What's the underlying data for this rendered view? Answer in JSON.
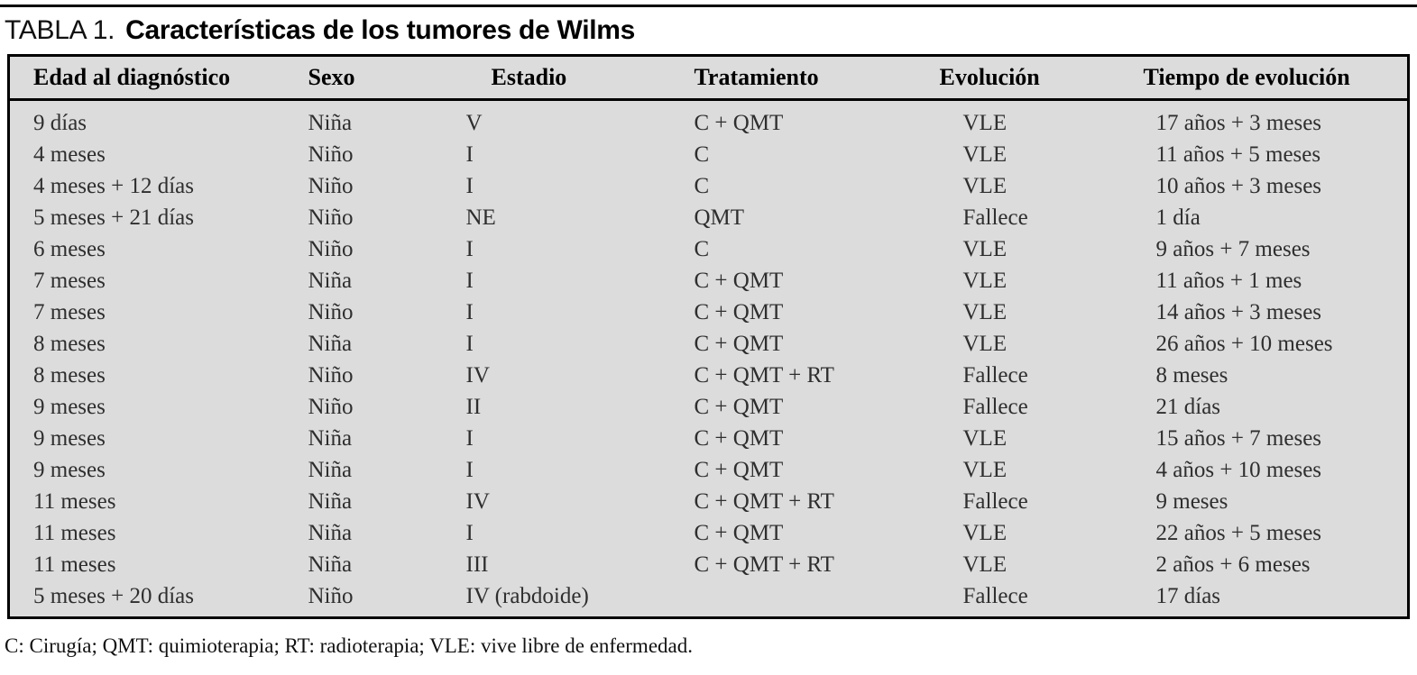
{
  "page": {
    "title_prefix": "TABLA 1.",
    "title_main": "Características de los tumores de Wilms",
    "footnote": "C: Cirugía; QMT: quimioterapia; RT: radioterapia; VLE: vive libre de enfermedad."
  },
  "colors": {
    "table_background": "#dcdcdc",
    "border": "#000000",
    "page_background": "#ffffff"
  },
  "table": {
    "columns": [
      "Edad al diagnóstico",
      "Sexo",
      "Estadio",
      "Tratamiento",
      "Evolución",
      "Tiempo de evolución"
    ],
    "rows": [
      [
        "9 días",
        "Niña",
        "V",
        "C + QMT",
        "VLE",
        "17 años + 3 meses"
      ],
      [
        "4 meses",
        "Niño",
        "I",
        "C",
        "VLE",
        "11 años + 5 meses"
      ],
      [
        "4 meses + 12 días",
        "Niño",
        "I",
        "C",
        "VLE",
        "10 años + 3 meses"
      ],
      [
        "5 meses + 21 días",
        "Niño",
        "NE",
        "QMT",
        "Fallece",
        "1 día"
      ],
      [
        "6 meses",
        "Niño",
        "I",
        "C",
        "VLE",
        "9 años + 7 meses"
      ],
      [
        "7 meses",
        "Niña",
        "I",
        "C + QMT",
        "VLE",
        "11 años + 1 mes"
      ],
      [
        "7 meses",
        "Niño",
        "I",
        "C + QMT",
        "VLE",
        "14 años + 3 meses"
      ],
      [
        "8 meses",
        "Niña",
        "I",
        "C + QMT",
        "VLE",
        "26 años + 10 meses"
      ],
      [
        "8 meses",
        "Niño",
        "IV",
        "C + QMT + RT",
        "Fallece",
        "8 meses"
      ],
      [
        "9 meses",
        "Niño",
        "II",
        "C + QMT",
        "Fallece",
        "21 días"
      ],
      [
        "9 meses",
        "Niña",
        "I",
        "C + QMT",
        "VLE",
        "15 años + 7 meses"
      ],
      [
        "9 meses",
        "Niña",
        "I",
        "C + QMT",
        "VLE",
        "4 años + 10 meses"
      ],
      [
        "11 meses",
        "Niña",
        "IV",
        "C + QMT + RT",
        "Fallece",
        "9 meses"
      ],
      [
        "11 meses",
        "Niña",
        "I",
        "C + QMT",
        "VLE",
        "22 años + 5 meses"
      ],
      [
        "11 meses",
        "Niña",
        "III",
        "C + QMT + RT",
        "VLE",
        "2 años + 6 meses"
      ],
      [
        "5 meses + 20 días",
        "Niño",
        "IV (rabdoide)",
        "",
        "Fallece",
        "17 días"
      ]
    ]
  }
}
